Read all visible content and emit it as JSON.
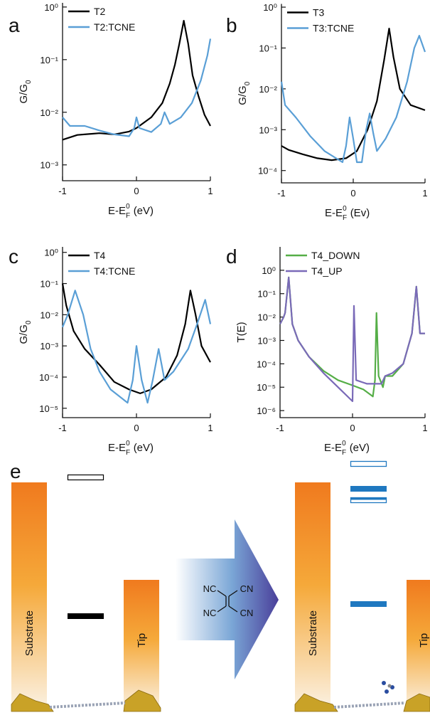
{
  "chart_data": [
    {
      "type": "line",
      "panel_label": "a",
      "log_y": true,
      "ylabel": {
        "main": "G/G",
        "sub": "0"
      },
      "xlabel": {
        "main": "E-E",
        "sub": "F",
        "sup": "0",
        "unit": "(eV)"
      },
      "xlim": [
        -1,
        1
      ],
      "xticks": [
        -1,
        0,
        1
      ],
      "ylim": [
        0.0005,
        1.2
      ],
      "yticks": [
        {
          "value": 1,
          "label": "10⁰"
        },
        {
          "value": 0.1,
          "label": "10⁻¹"
        },
        {
          "value": 0.01,
          "label": "10⁻²"
        },
        {
          "value": 0.001,
          "label": "10⁻³"
        }
      ],
      "series": [
        {
          "name": "T2",
          "color": "#000000",
          "x": [
            -1,
            -0.8,
            -0.5,
            -0.3,
            -0.1,
            0,
            0.2,
            0.35,
            0.45,
            0.52,
            0.58,
            0.64,
            0.7,
            0.76,
            0.84,
            0.92,
            1
          ],
          "values": [
            0.003,
            0.0037,
            0.004,
            0.0038,
            0.0043,
            0.005,
            0.008,
            0.015,
            0.035,
            0.08,
            0.2,
            0.55,
            0.2,
            0.05,
            0.02,
            0.009,
            0.0055
          ]
        },
        {
          "name": "T2:TCNE",
          "color": "#5a9fd6",
          "x": [
            -1,
            -0.9,
            -0.7,
            -0.5,
            -0.3,
            -0.1,
            -0.03,
            0,
            0.04,
            0.2,
            0.33,
            0.38,
            0.45,
            0.6,
            0.75,
            0.87,
            0.96,
            1
          ],
          "values": [
            0.008,
            0.0055,
            0.0055,
            0.0045,
            0.0038,
            0.0035,
            0.005,
            0.008,
            0.005,
            0.0042,
            0.006,
            0.01,
            0.006,
            0.008,
            0.015,
            0.04,
            0.12,
            0.25
          ]
        }
      ]
    },
    {
      "type": "line",
      "panel_label": "b",
      "log_y": true,
      "ylabel": {
        "main": "G/G",
        "sub": "0"
      },
      "xlabel": {
        "main": "E-E",
        "sub": "F",
        "sup": "0",
        "unit": "(Ev)"
      },
      "xlim": [
        -1,
        1
      ],
      "xticks": [
        -1,
        0,
        1
      ],
      "ylim": [
        5e-05,
        1.2
      ],
      "yticks": [
        {
          "value": 1,
          "label": "10⁰"
        },
        {
          "value": 0.1,
          "label": "10⁻¹"
        },
        {
          "value": 0.01,
          "label": "10⁻²"
        },
        {
          "value": 0.001,
          "label": "10⁻³"
        },
        {
          "value": 0.0001,
          "label": "10⁻⁴"
        }
      ],
      "series": [
        {
          "name": "T3",
          "color": "#000000",
          "x": [
            -1,
            -0.9,
            -0.7,
            -0.5,
            -0.3,
            -0.1,
            0.05,
            0.2,
            0.33,
            0.43,
            0.5,
            0.56,
            0.65,
            0.8,
            1
          ],
          "values": [
            0.0004,
            0.00032,
            0.00025,
            0.0002,
            0.00018,
            0.0002,
            0.0003,
            0.001,
            0.005,
            0.05,
            0.3,
            0.06,
            0.01,
            0.004,
            0.003
          ]
        },
        {
          "name": "T3:TCNE",
          "color": "#5a9fd6",
          "x": [
            -1,
            -0.95,
            -0.8,
            -0.6,
            -0.4,
            -0.15,
            -0.1,
            -0.05,
            0,
            0.05,
            0.12,
            0.18,
            0.23,
            0.28,
            0.33,
            0.45,
            0.6,
            0.75,
            0.85,
            0.92,
            1
          ],
          "values": [
            0.015,
            0.004,
            0.002,
            0.0007,
            0.0003,
            0.00016,
            0.0004,
            0.002,
            0.0006,
            0.00016,
            0.00016,
            0.001,
            0.0025,
            0.0008,
            0.0003,
            0.0006,
            0.002,
            0.015,
            0.1,
            0.2,
            0.08
          ]
        }
      ]
    },
    {
      "type": "line",
      "panel_label": "c",
      "log_y": true,
      "ylabel": {
        "main": "G/G",
        "sub": "0"
      },
      "xlabel": {
        "main": "E-E",
        "sub": "F",
        "sup": "0",
        "unit": "(eV)"
      },
      "xlim": [
        -1,
        1
      ],
      "xticks": [
        -1,
        0,
        1
      ],
      "ylim": [
        5e-06,
        1.5
      ],
      "yticks": [
        {
          "value": 1,
          "label": "10⁰"
        },
        {
          "value": 0.1,
          "label": "10⁻¹"
        },
        {
          "value": 0.01,
          "label": "10⁻²"
        },
        {
          "value": 0.001,
          "label": "10⁻³"
        },
        {
          "value": 0.0001,
          "label": "10⁻⁴"
        },
        {
          "value": 1e-05,
          "label": "10⁻⁵"
        }
      ],
      "series": [
        {
          "name": "T4",
          "color": "#000000",
          "x": [
            -1,
            -0.95,
            -0.85,
            -0.7,
            -0.5,
            -0.3,
            -0.1,
            0.05,
            0.2,
            0.4,
            0.55,
            0.66,
            0.73,
            0.8,
            0.88,
            1
          ],
          "values": [
            0.1,
            0.02,
            0.003,
            0.0008,
            0.00025,
            7e-05,
            4e-05,
            3e-05,
            4e-05,
            0.0001,
            0.0005,
            0.005,
            0.06,
            0.01,
            0.001,
            0.0003
          ]
        },
        {
          "name": "T4:TCNE",
          "color": "#5a9fd6",
          "x": [
            -1,
            -0.93,
            -0.83,
            -0.72,
            -0.62,
            -0.5,
            -0.35,
            -0.12,
            -0.05,
            0,
            0.07,
            0.15,
            0.22,
            0.3,
            0.38,
            0.5,
            0.7,
            0.82,
            0.93,
            1
          ],
          "values": [
            0.004,
            0.01,
            0.06,
            0.01,
            0.0008,
            0.00015,
            4e-05,
            1.5e-05,
            8e-05,
            0.001,
            8e-05,
            1.5e-05,
            8e-05,
            0.0008,
            8e-05,
            0.00015,
            0.0008,
            0.005,
            0.03,
            0.005
          ]
        }
      ]
    },
    {
      "type": "line",
      "panel_label": "d",
      "log_y": true,
      "ylabel": "T(E)",
      "xlabel": {
        "main": "E-E",
        "sub": "F",
        "sup": "0",
        "unit": "(eV)"
      },
      "xlim": [
        -1,
        1
      ],
      "xticks": [
        -1,
        0,
        1
      ],
      "ylim": [
        5e-07,
        10
      ],
      "yticks": [
        {
          "value": 1,
          "label": "10⁰"
        },
        {
          "value": 0.1,
          "label": "10⁻¹"
        },
        {
          "value": 0.01,
          "label": "10⁻²"
        },
        {
          "value": 0.001,
          "label": "10⁻³"
        },
        {
          "value": 0.0001,
          "label": "10⁻⁴"
        },
        {
          "value": 1e-05,
          "label": "10⁻⁵"
        },
        {
          "value": 1e-06,
          "label": "10⁻⁶"
        }
      ],
      "series": [
        {
          "name": "T4_DOWN",
          "color": "#55ae47",
          "x": [
            -1,
            -0.95,
            -0.93,
            -0.88,
            -0.83,
            -0.75,
            -0.6,
            -0.4,
            -0.2,
            0,
            0.15,
            0.28,
            0.31,
            0.33,
            0.36,
            0.42,
            0.45,
            0.55,
            0.7,
            0.82,
            0.88,
            0.93,
            1
          ],
          "values": [
            0.005,
            0.01,
            0.015,
            0.5,
            0.005,
            0.001,
            0.0002,
            5e-05,
            2e-05,
            1.2e-05,
            8e-06,
            4e-06,
            2e-05,
            0.015,
            3e-05,
            1e-05,
            3e-05,
            3e-05,
            0.0001,
            0.002,
            0.2,
            0.002,
            0.002
          ]
        },
        {
          "name": "T4_UP",
          "color": "#7a6ab8",
          "x": [
            -1,
            -0.95,
            -0.93,
            -0.88,
            -0.83,
            -0.75,
            -0.6,
            -0.4,
            -0.2,
            0,
            0.02,
            0.05,
            0.2,
            0.4,
            0.45,
            0.55,
            0.7,
            0.82,
            0.88,
            0.93,
            1
          ],
          "values": [
            0.005,
            0.01,
            0.015,
            0.5,
            0.005,
            0.001,
            0.0002,
            4e-05,
            1e-05,
            2.5e-06,
            0.03,
            2e-05,
            1.4e-05,
            1.4e-05,
            3e-05,
            4e-05,
            0.0001,
            0.002,
            0.2,
            0.002,
            0.002
          ]
        }
      ]
    }
  ],
  "diagram": {
    "label": "e",
    "left": {
      "substrate": "Substrate",
      "tip": "Tip"
    },
    "right": {
      "substrate": "Substrate",
      "tip": "Tip"
    },
    "molecule": {
      "groups": [
        "NC",
        "CN",
        "NC",
        "CN"
      ]
    }
  }
}
